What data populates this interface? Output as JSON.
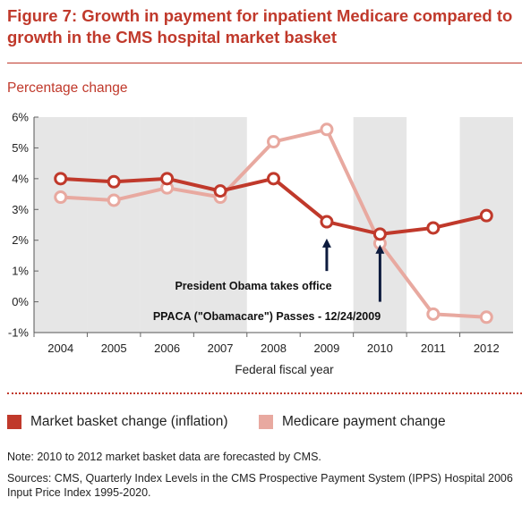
{
  "title": "Figure 7: Growth in payment for inpatient Medicare compared to growth in the CMS hospital market basket",
  "subtitle": "Percentage change",
  "colors": {
    "accent": "#c0392b",
    "market_basket": "#c0392b",
    "medicare": "#e8a9a0",
    "shade": "#e6e6e6"
  },
  "legend": {
    "market_basket": "Market basket change (inflation)",
    "medicare": "Medicare payment change"
  },
  "note": "Note: 2010 to 2012 market basket data are forecasted by CMS.",
  "sources": "Sources: CMS, Quarterly Index Levels in the CMS Prospective Payment System (IPPS) Hospital 2006 Input Price Index 1995-2020.",
  "chart_data": {
    "type": "line",
    "title": "",
    "xlabel": "Federal fiscal year",
    "ylabel": "Percentage change",
    "categories": [
      "2004",
      "2005",
      "2006",
      "2007",
      "2008",
      "2009",
      "2010",
      "2011",
      "2012"
    ],
    "ylim": [
      -1,
      6
    ],
    "yticks": [
      "-1%",
      "0%",
      "1%",
      "2%",
      "3%",
      "4%",
      "5%",
      "6%"
    ],
    "shaded_years": [
      "2004",
      "2005",
      "2006",
      "2007",
      "2010",
      "2012"
    ],
    "series": [
      {
        "name": "Market basket change (inflation)",
        "color": "#c0392b",
        "values": [
          4.0,
          3.9,
          4.0,
          3.6,
          4.0,
          2.6,
          2.2,
          2.4,
          2.8
        ]
      },
      {
        "name": "Medicare payment change",
        "color": "#e8a9a0",
        "values": [
          3.4,
          3.3,
          3.7,
          3.4,
          5.2,
          5.6,
          1.9,
          -0.4,
          -0.5
        ]
      }
    ],
    "annotations": [
      {
        "text": "President Obama takes office",
        "x": "2009",
        "arrow_from": 1.0,
        "arrow_to": 2.2
      },
      {
        "text": "PPACA (\"Obamacare\") Passes - 12/24/2009",
        "x": "2010",
        "arrow_from": 0.0,
        "arrow_to": 2.0
      }
    ]
  }
}
